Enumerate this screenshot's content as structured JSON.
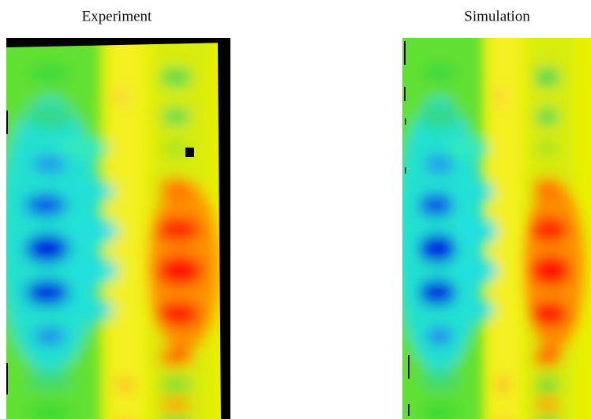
{
  "panels": [
    {
      "title": "Experiment"
    },
    {
      "title": "Simulation"
    }
  ]
}
